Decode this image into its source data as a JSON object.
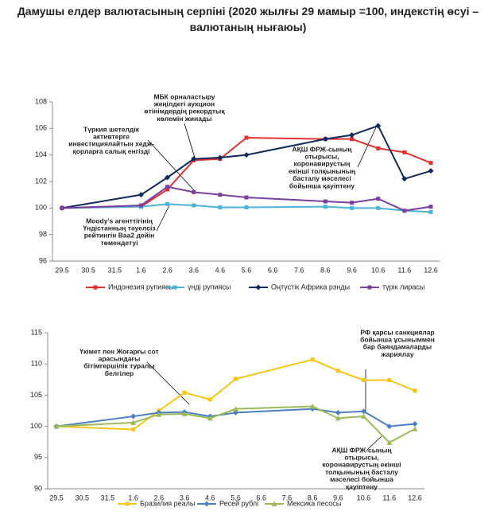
{
  "title": "Дамушы елдер валютасының серпіні (2020 жылғы 29 мамыр =100, индекстің өсуі – валютаның нығаюы)",
  "chart_data": [
    {
      "type": "line",
      "categories": [
        "29.5",
        "30.5",
        "31.5",
        "1.6",
        "2.6",
        "3.6",
        "4.6",
        "5.6",
        "6.6",
        "7.6",
        "8.6",
        "9.6",
        "10.6",
        "11.6",
        "12.6"
      ],
      "x": [
        "29.5",
        "1.6",
        "2.6",
        "3.6",
        "4.6",
        "5.6",
        "8.6",
        "9.6",
        "10.6",
        "11.6",
        "12.6"
      ],
      "ylim": [
        96,
        108
      ],
      "yticks": [
        96,
        98,
        100,
        102,
        104,
        106,
        108
      ],
      "series": [
        {
          "name": "Индонезия рупиясы",
          "color": "#e03030",
          "marker": "square",
          "values": [
            100,
            100.1,
            101.4,
            103.6,
            103.7,
            105.3,
            105.2,
            105.2,
            104.5,
            104.2,
            103.4
          ]
        },
        {
          "name": "үнді рупиясы",
          "color": "#4bb3d6",
          "marker": "square",
          "values": [
            100,
            100.1,
            100.3,
            100.2,
            100.05,
            100.05,
            100.1,
            100.0,
            100.0,
            99.8,
            99.7
          ]
        },
        {
          "name": "Оңтүстік Африка рэнды",
          "color": "#0f2a5c",
          "marker": "diamond",
          "values": [
            100,
            101.0,
            102.3,
            103.7,
            103.8,
            104.0,
            105.2,
            105.5,
            106.2,
            102.2,
            102.8
          ]
        },
        {
          "name": "түрік лирасы",
          "color": "#7b3fa0",
          "marker": "square",
          "values": [
            100,
            100.2,
            101.6,
            101.2,
            101.0,
            100.8,
            100.5,
            100.4,
            100.7,
            99.8,
            100.1
          ]
        }
      ],
      "annotations": [
        [
          "МБК орналастыру",
          "жеңілдегі аукцион",
          "өтінімдердің рекордтық",
          "көлемін жинады"
        ],
        [
          "Түркия шетелдік",
          "активтерге",
          "инвестициялайтын хедж-",
          "қорларға салық енгізді"
        ],
        [
          "Moody's агенттігінің",
          "Үндістанның тәуелсіз",
          "рейтингін Baa2 дейін",
          "төмендетуі"
        ],
        [
          "АҚШ ФРЖ-сының",
          "отырысы,",
          "коронавирустың",
          "екінші толқынының",
          "басталу мәселесі",
          "бойынша қауіптену"
        ]
      ]
    },
    {
      "type": "line",
      "categories": [
        "29.5",
        "30.5",
        "31.5",
        "1.6",
        "2.6",
        "3.6",
        "4.6",
        "5.6",
        "6.6",
        "7.6",
        "8.6",
        "9.6",
        "10.6",
        "11.6",
        "12.6"
      ],
      "x": [
        "29.5",
        "1.6",
        "2.6",
        "3.6",
        "4.6",
        "5.6",
        "8.6",
        "9.6",
        "10.6",
        "11.6",
        "12.6"
      ],
      "ylim": [
        90,
        115
      ],
      "yticks": [
        90,
        95,
        100,
        105,
        110,
        115
      ],
      "series": [
        {
          "name": "Бразилия реалы",
          "color": "#f5c518",
          "marker": "square",
          "values": [
            100,
            99.5,
            102.5,
            105.4,
            104.3,
            107.6,
            110.7,
            108.9,
            107.4,
            107.4,
            105.7
          ]
        },
        {
          "name": "Ресей рублі",
          "color": "#4a7fc1",
          "marker": "diamond",
          "values": [
            100,
            101.6,
            102.2,
            102.3,
            101.6,
            102.2,
            102.8,
            102.2,
            102.4,
            100.0,
            100.4
          ]
        },
        {
          "name": "Мексика песосы",
          "color": "#9bbb59",
          "marker": "triangle",
          "values": [
            100,
            100.6,
            101.9,
            102.0,
            101.3,
            102.8,
            103.2,
            101.3,
            101.6,
            97.4,
            99.6
          ]
        }
      ],
      "annotations": [
        [
          "Үкімет пен Жоғарғы сот",
          "арасындағы",
          "бітімгершілік туралы",
          "белгілер"
        ],
        [
          "РФ қарсы санкциялар",
          "бойынша ұсыныммен",
          "бар баяндамаларды",
          "жариялау"
        ],
        [
          "АҚШ ФРЖ-сының",
          "отырысы,",
          "коронавирустың екінші",
          "толқынының басталу",
          "мәселесі бойынша",
          "қауіптену"
        ]
      ]
    }
  ]
}
